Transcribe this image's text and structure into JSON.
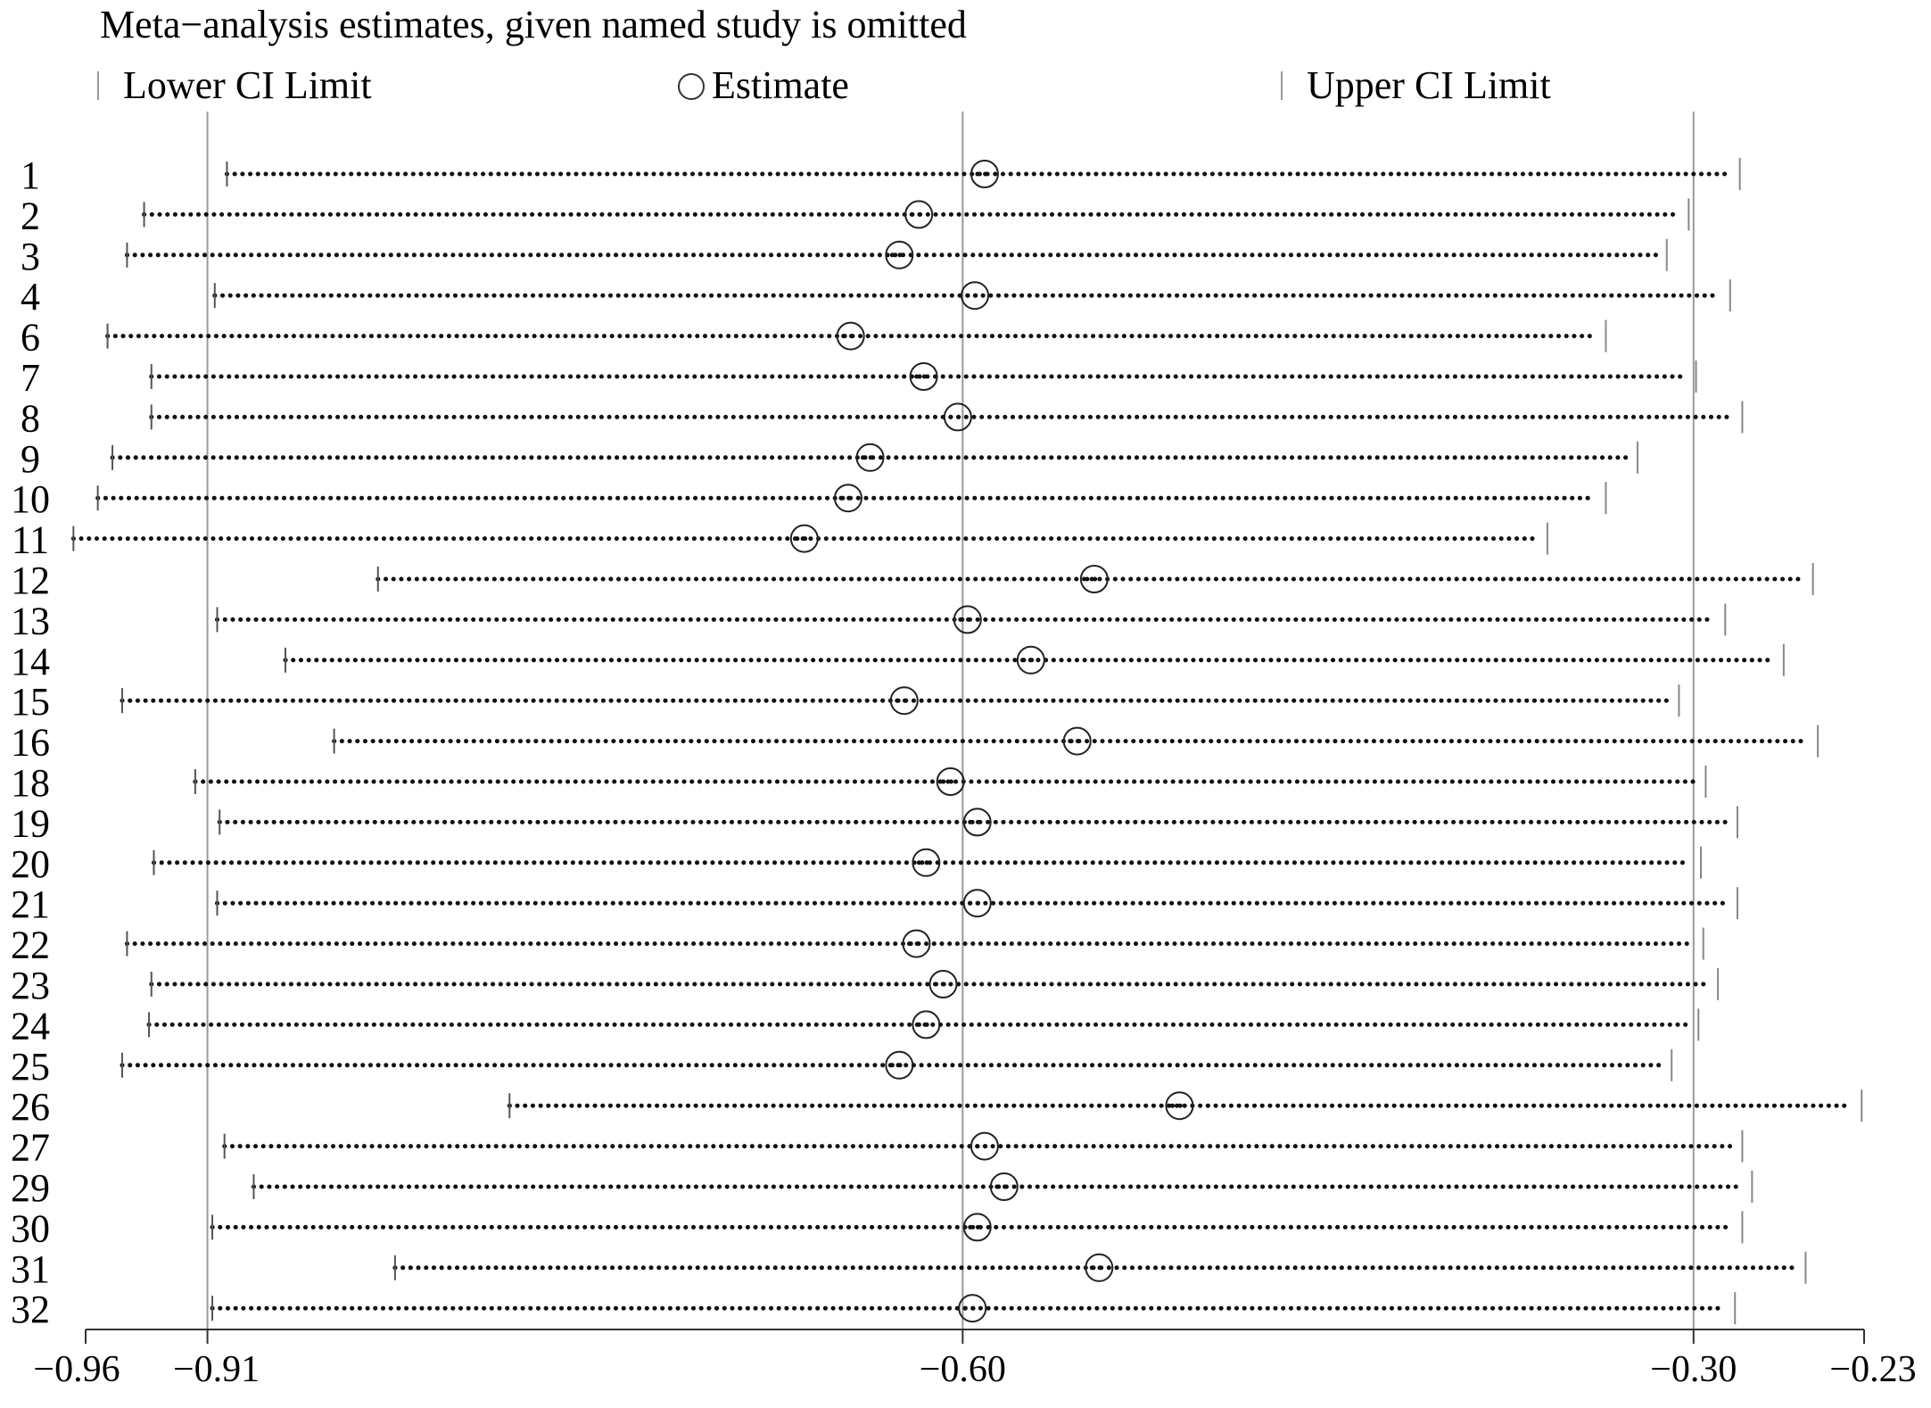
{
  "chart_data": {
    "type": "forest",
    "title": "Meta−analysis estimates, given named study is omitted",
    "legend": {
      "lower": "Lower CI Limit",
      "estimate": "Estimate",
      "upper": "Upper CI Limit"
    },
    "x_ticks": [
      {
        "value": -0.96,
        "label": "−0.96"
      },
      {
        "value": -0.91,
        "label": "−0.91"
      },
      {
        "value": -0.6,
        "label": "−0.60"
      },
      {
        "value": -0.3,
        "label": "−0.30"
      },
      {
        "value": -0.23,
        "label": "−0.23"
      }
    ],
    "reference_lines": [
      -0.91,
      -0.6,
      -0.3
    ],
    "xlim": [
      -0.96,
      -0.23
    ],
    "studies": [
      {
        "label": "1",
        "lower": -0.902,
        "estimate": -0.591,
        "upper": -0.281
      },
      {
        "label": "2",
        "lower": -0.936,
        "estimate": -0.618,
        "upper": -0.302
      },
      {
        "label": "3",
        "lower": -0.943,
        "estimate": -0.626,
        "upper": -0.311
      },
      {
        "label": "4",
        "lower": -0.907,
        "estimate": -0.595,
        "upper": -0.285
      },
      {
        "label": "6",
        "lower": -0.951,
        "estimate": -0.646,
        "upper": -0.336
      },
      {
        "label": "7",
        "lower": -0.933,
        "estimate": -0.616,
        "upper": -0.299
      },
      {
        "label": "8",
        "lower": -0.933,
        "estimate": -0.602,
        "upper": -0.28
      },
      {
        "label": "9",
        "lower": -0.949,
        "estimate": -0.638,
        "upper": -0.323
      },
      {
        "label": "10",
        "lower": -0.955,
        "estimate": -0.647,
        "upper": -0.336
      },
      {
        "label": "11",
        "lower": -0.965,
        "estimate": -0.665,
        "upper": -0.36
      },
      {
        "label": "12",
        "lower": -0.84,
        "estimate": -0.546,
        "upper": -0.251
      },
      {
        "label": "13",
        "lower": -0.906,
        "estimate": -0.598,
        "upper": -0.287
      },
      {
        "label": "14",
        "lower": -0.878,
        "estimate": -0.572,
        "upper": -0.263
      },
      {
        "label": "15",
        "lower": -0.945,
        "estimate": -0.624,
        "upper": -0.306
      },
      {
        "label": "16",
        "lower": -0.858,
        "estimate": -0.553,
        "upper": -0.249
      },
      {
        "label": "18",
        "lower": -0.915,
        "estimate": -0.605,
        "upper": -0.295
      },
      {
        "label": "19",
        "lower": -0.905,
        "estimate": -0.594,
        "upper": -0.282
      },
      {
        "label": "20",
        "lower": -0.932,
        "estimate": -0.615,
        "upper": -0.297
      },
      {
        "label": "21",
        "lower": -0.906,
        "estimate": -0.594,
        "upper": -0.282
      },
      {
        "label": "22",
        "lower": -0.943,
        "estimate": -0.619,
        "upper": -0.296
      },
      {
        "label": "23",
        "lower": -0.933,
        "estimate": -0.608,
        "upper": -0.29
      },
      {
        "label": "24",
        "lower": -0.934,
        "estimate": -0.615,
        "upper": -0.298
      },
      {
        "label": "25",
        "lower": -0.945,
        "estimate": -0.626,
        "upper": -0.309
      },
      {
        "label": "26",
        "lower": -0.786,
        "estimate": -0.511,
        "upper": -0.231
      },
      {
        "label": "27",
        "lower": -0.903,
        "estimate": -0.591,
        "upper": -0.28
      },
      {
        "label": "29",
        "lower": -0.891,
        "estimate": -0.583,
        "upper": -0.276
      },
      {
        "label": "30",
        "lower": -0.908,
        "estimate": -0.594,
        "upper": -0.28
      },
      {
        "label": "31",
        "lower": -0.833,
        "estimate": -0.544,
        "upper": -0.254
      },
      {
        "label": "32",
        "lower": -0.908,
        "estimate": -0.596,
        "upper": -0.283
      }
    ]
  }
}
